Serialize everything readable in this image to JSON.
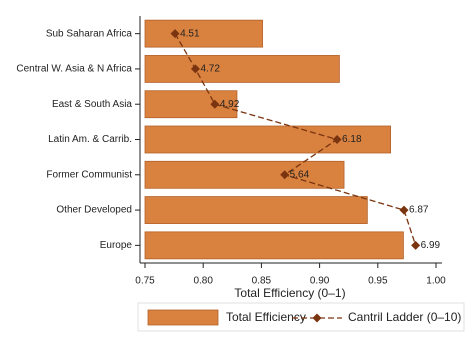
{
  "chart_data": {
    "type": "bar",
    "orientation": "horizontal",
    "x_label": "Total Efficiency (0–1)",
    "categories": [
      "Sub Saharan Africa",
      "Central W. Asia & N Africa",
      "East & South Asia",
      "Latin Am. & Carrib.",
      "Former Communist",
      "Other Developed",
      "Europe"
    ],
    "series": [
      {
        "name": "Total Efficiency",
        "type": "bar",
        "color": "#d9813f",
        "values": [
          0.851,
          0.917,
          0.829,
          0.961,
          0.921,
          0.941,
          0.972
        ]
      },
      {
        "name": "Cantril Ladder (0–10)",
        "type": "line",
        "axis": "x2",
        "color": "#7a3510",
        "dashed": true,
        "values": [
          4.51,
          4.72,
          4.92,
          6.18,
          5.64,
          6.87,
          6.99
        ]
      }
    ],
    "xlim": [
      0.75,
      1.0
    ],
    "xticks": [
      0.75,
      {
        "value": 0.8,
        "label": "0.80"
      },
      0.85,
      {
        "value": 0.9,
        "label": "0.90"
      },
      0.95,
      {
        "value": 1.0,
        "label": "1.00"
      }
    ],
    "x2lim": [
      4.2,
      7.2
    ],
    "legend": "bottom"
  }
}
